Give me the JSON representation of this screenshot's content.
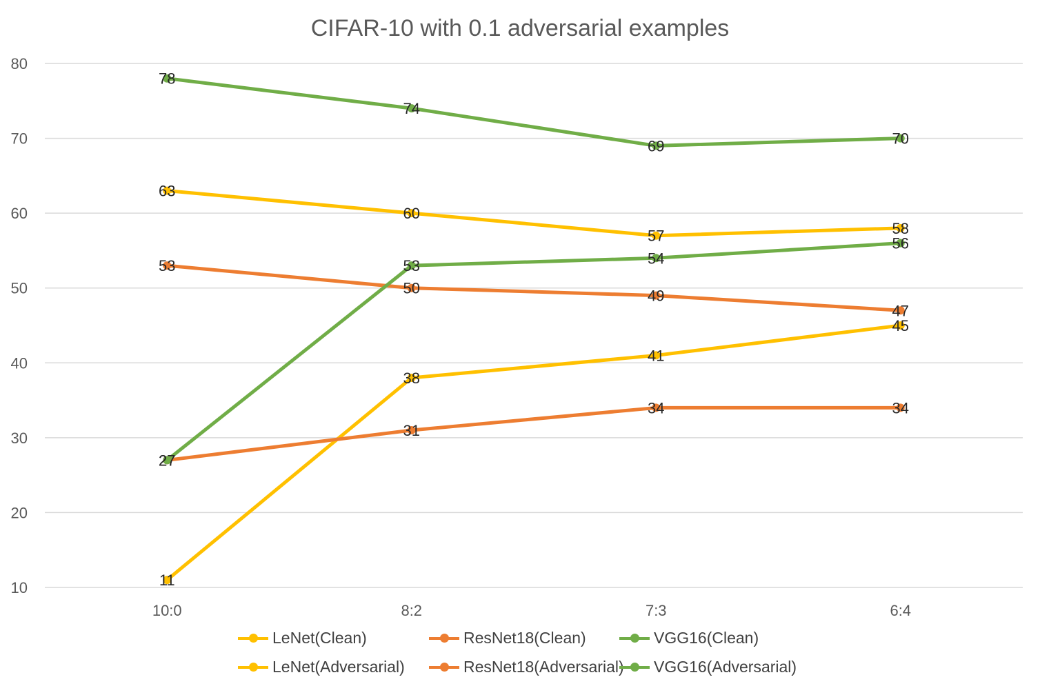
{
  "chart_data": {
    "type": "line",
    "title": "CIFAR-10 with 0.1 adversarial examples",
    "categories": [
      "10:0",
      "8:2",
      "7:3",
      "6:4"
    ],
    "ylim": [
      10,
      80
    ],
    "yticks": [
      10,
      20,
      30,
      40,
      50,
      60,
      70,
      80
    ],
    "grid": true,
    "legend_position": "bottom",
    "series": [
      {
        "name": "LeNet(Clean)",
        "color": "#FFC000",
        "values": [
          63,
          60,
          57,
          58
        ]
      },
      {
        "name": "ResNet18(Clean)",
        "color": "#ED7D31",
        "values": [
          53,
          50,
          49,
          47
        ]
      },
      {
        "name": "VGG16(Clean)",
        "color": "#70AD47",
        "values": [
          78,
          74,
          69,
          70
        ]
      },
      {
        "name": "LeNet(Adversarial)",
        "color": "#FFC000",
        "values": [
          11,
          38,
          41,
          45
        ]
      },
      {
        "name": "ResNet18(Adversarial)",
        "color": "#ED7D31",
        "values": [
          27,
          31,
          34,
          34
        ]
      },
      {
        "name": "VGG16(Adversarial)",
        "color": "#70AD47",
        "values": [
          27,
          53,
          54,
          56
        ]
      }
    ]
  }
}
